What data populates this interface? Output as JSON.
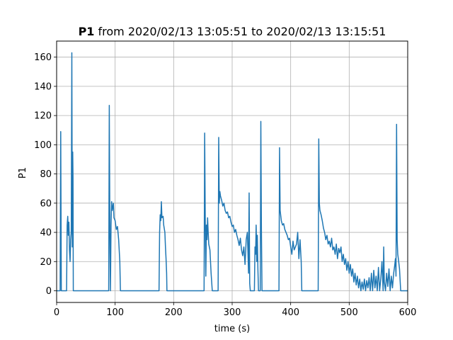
{
  "chart_data": {
    "type": "line",
    "title": {
      "bold": "P1",
      "rest": "from 2020/02/13 13:05:51 to 2020/02/13 13:15:51"
    },
    "xlabel": "time (s)",
    "ylabel": "P1",
    "xlim": [
      0,
      600
    ],
    "ylim": [
      -8,
      171
    ],
    "xticks": [
      0,
      100,
      200,
      300,
      400,
      500,
      600
    ],
    "yticks": [
      0,
      20,
      40,
      60,
      80,
      100,
      120,
      140,
      160
    ],
    "grid": true,
    "series": [
      {
        "color": "#1f77b4",
        "points": [
          [
            0,
            0
          ],
          [
            6,
            0
          ],
          [
            7,
            109
          ],
          [
            8,
            0
          ],
          [
            17,
            0
          ],
          [
            18,
            45
          ],
          [
            19,
            51
          ],
          [
            20,
            38
          ],
          [
            21,
            47
          ],
          [
            22,
            28
          ],
          [
            23,
            20
          ],
          [
            24,
            35
          ],
          [
            25,
            40
          ],
          [
            26,
            163
          ],
          [
            26.8,
            30
          ],
          [
            27.5,
            95
          ],
          [
            28,
            78
          ],
          [
            28.5,
            0
          ],
          [
            89,
            0
          ],
          [
            90,
            127
          ],
          [
            91,
            40
          ],
          [
            92,
            0
          ],
          [
            93,
            45
          ],
          [
            94,
            61
          ],
          [
            95,
            55
          ],
          [
            97,
            60
          ],
          [
            98,
            50
          ],
          [
            100,
            48
          ],
          [
            102,
            42
          ],
          [
            104,
            44
          ],
          [
            106,
            35
          ],
          [
            108,
            20
          ],
          [
            109,
            0
          ],
          [
            175,
            0
          ],
          [
            176,
            40
          ],
          [
            177,
            52
          ],
          [
            178,
            48
          ],
          [
            179,
            61
          ],
          [
            180,
            50
          ],
          [
            182,
            51
          ],
          [
            183,
            45
          ],
          [
            185,
            40
          ],
          [
            186,
            30
          ],
          [
            187,
            22
          ],
          [
            188,
            12
          ],
          [
            188.5,
            0
          ],
          [
            252,
            0
          ],
          [
            253,
            108
          ],
          [
            254,
            50
          ],
          [
            255,
            10
          ],
          [
            256,
            45
          ],
          [
            257,
            35
          ],
          [
            258,
            50
          ],
          [
            259,
            40
          ],
          [
            260,
            32
          ],
          [
            262,
            28
          ],
          [
            264,
            12
          ],
          [
            266,
            0
          ],
          [
            276,
            0
          ],
          [
            277,
            105
          ],
          [
            278,
            60
          ],
          [
            279,
            68
          ],
          [
            280,
            65
          ],
          [
            282,
            62
          ],
          [
            284,
            58
          ],
          [
            286,
            60
          ],
          [
            288,
            55
          ],
          [
            290,
            53
          ],
          [
            292,
            54
          ],
          [
            294,
            50
          ],
          [
            296,
            51
          ],
          [
            298,
            47
          ],
          [
            300,
            44
          ],
          [
            302,
            45
          ],
          [
            304,
            40
          ],
          [
            306,
            42
          ],
          [
            308,
            38
          ],
          [
            310,
            35
          ],
          [
            312,
            31
          ],
          [
            314,
            36
          ],
          [
            316,
            28
          ],
          [
            318,
            24
          ],
          [
            320,
            30
          ],
          [
            322,
            18
          ],
          [
            324,
            35
          ],
          [
            326,
            40
          ],
          [
            328,
            12
          ],
          [
            329,
            67
          ],
          [
            330,
            5
          ],
          [
            331,
            0
          ],
          [
            338,
            0
          ],
          [
            339,
            30
          ],
          [
            340,
            25
          ],
          [
            341,
            45
          ],
          [
            342,
            20
          ],
          [
            343,
            38
          ],
          [
            344,
            15
          ],
          [
            345,
            0
          ],
          [
            348,
            0
          ],
          [
            349,
            116
          ],
          [
            350,
            42
          ],
          [
            351,
            0
          ],
          [
            380,
            0
          ],
          [
            381,
            98
          ],
          [
            382,
            55
          ],
          [
            384,
            48
          ],
          [
            386,
            45
          ],
          [
            388,
            46
          ],
          [
            390,
            42
          ],
          [
            392,
            40
          ],
          [
            394,
            38
          ],
          [
            396,
            35
          ],
          [
            398,
            36
          ],
          [
            400,
            30
          ],
          [
            402,
            25
          ],
          [
            404,
            34
          ],
          [
            406,
            28
          ],
          [
            408,
            30
          ],
          [
            410,
            32
          ],
          [
            412,
            40
          ],
          [
            414,
            22
          ],
          [
            416,
            35
          ],
          [
            418,
            20
          ],
          [
            419,
            0
          ],
          [
            447,
            0
          ],
          [
            448,
            104
          ],
          [
            449,
            60
          ],
          [
            450,
            55
          ],
          [
            452,
            52
          ],
          [
            454,
            48
          ],
          [
            456,
            43
          ],
          [
            458,
            40
          ],
          [
            460,
            35
          ],
          [
            462,
            38
          ],
          [
            464,
            32
          ],
          [
            466,
            34
          ],
          [
            468,
            30
          ],
          [
            470,
            36
          ],
          [
            472,
            28
          ],
          [
            474,
            30
          ],
          [
            476,
            25
          ],
          [
            478,
            32
          ],
          [
            480,
            22
          ],
          [
            482,
            29
          ],
          [
            484,
            26
          ],
          [
            486,
            30
          ],
          [
            488,
            20
          ],
          [
            490,
            25
          ],
          [
            492,
            18
          ],
          [
            494,
            22
          ],
          [
            496,
            14
          ],
          [
            498,
            20
          ],
          [
            500,
            12
          ],
          [
            502,
            18
          ],
          [
            504,
            10
          ],
          [
            506,
            15
          ],
          [
            508,
            6
          ],
          [
            510,
            12
          ],
          [
            512,
            4
          ],
          [
            514,
            10
          ],
          [
            516,
            2
          ],
          [
            518,
            8
          ],
          [
            520,
            0
          ],
          [
            522,
            6
          ],
          [
            524,
            1
          ],
          [
            526,
            8
          ],
          [
            528,
            0
          ],
          [
            530,
            7
          ],
          [
            532,
            2
          ],
          [
            534,
            9
          ],
          [
            536,
            0
          ],
          [
            538,
            12
          ],
          [
            540,
            0
          ],
          [
            542,
            14
          ],
          [
            544,
            2
          ],
          [
            546,
            10
          ],
          [
            548,
            0
          ],
          [
            550,
            16
          ],
          [
            552,
            0
          ],
          [
            554,
            8
          ],
          [
            556,
            20
          ],
          [
            558,
            0
          ],
          [
            559,
            30
          ],
          [
            560,
            6
          ],
          [
            562,
            0
          ],
          [
            564,
            12
          ],
          [
            566,
            3
          ],
          [
            568,
            15
          ],
          [
            570,
            0
          ],
          [
            572,
            10
          ],
          [
            574,
            2
          ],
          [
            576,
            12
          ],
          [
            578,
            18
          ],
          [
            579,
            22
          ],
          [
            580,
            10
          ],
          [
            581,
            114
          ],
          [
            582,
            35
          ],
          [
            583,
            25
          ],
          [
            584,
            22
          ],
          [
            586,
            15
          ],
          [
            588,
            0
          ],
          [
            600,
            0
          ]
        ]
      }
    ]
  }
}
